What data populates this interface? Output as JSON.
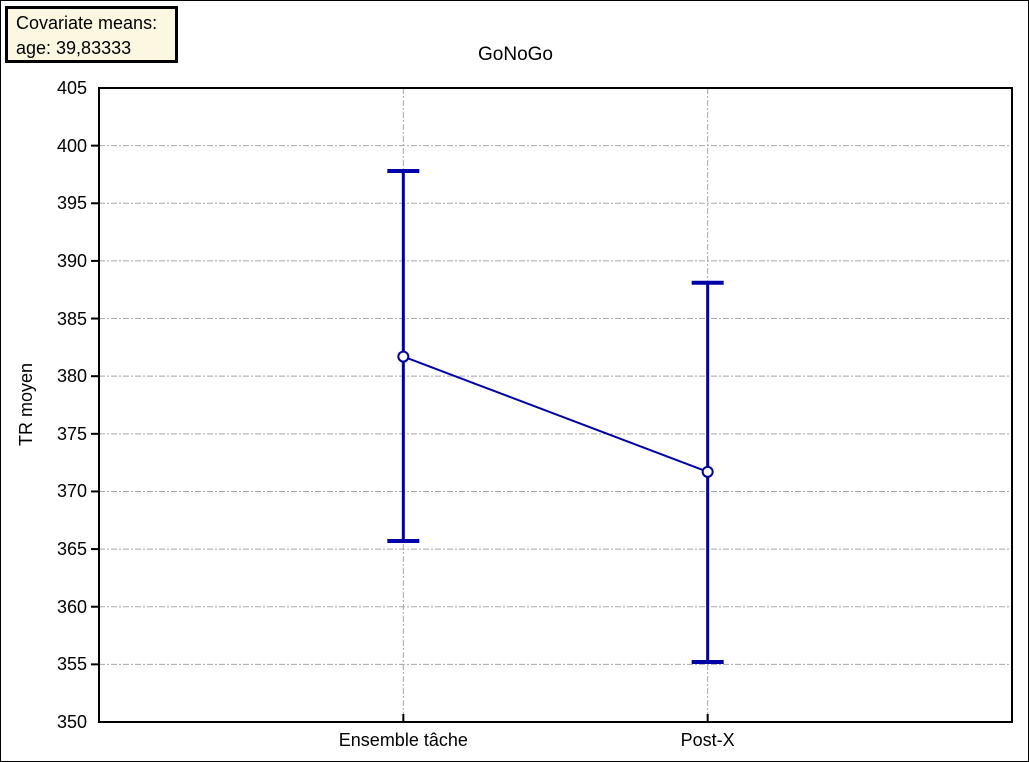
{
  "covariate_box": {
    "line1": "Covariate means:",
    "line2": "age: 39,83333"
  },
  "chart_data": {
    "type": "line",
    "title": "GoNoGo",
    "ylabel": "TR moyen",
    "xlabel": "",
    "categories": [
      "Ensemble tâche",
      "Post-X"
    ],
    "series": [
      {
        "name": "TR moyen",
        "values": [
          381.7,
          371.7
        ],
        "error_upper": [
          397.8,
          388.1
        ],
        "error_lower": [
          365.7,
          355.2
        ]
      }
    ],
    "ylim": [
      350,
      405
    ],
    "ytick_step": 5,
    "grid": {
      "horizontal": "dash-dot at every y tick (interior)",
      "vertical": "dash-dot at each category position"
    },
    "legend": "none",
    "marker": "open-circle",
    "colors": {
      "series": "#0000a8",
      "grid": "#a8a8a8",
      "frame": "#000000",
      "covariate_box_bg": "#fbf7e1",
      "text": "#000000",
      "background": "#ffffff"
    }
  }
}
